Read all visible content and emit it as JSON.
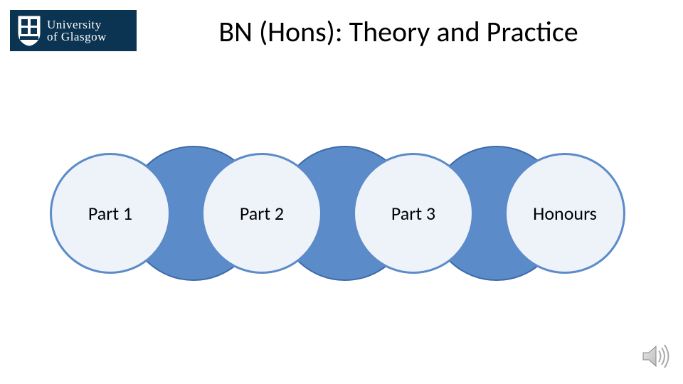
{
  "logo": {
    "bg_color": "#0b3352",
    "text_color": "#ffffff",
    "line1_prefix": "University",
    "line1_of": "of ",
    "line2": "Glasgow"
  },
  "title": {
    "text": "BN (Hons): Theory and Practice",
    "fontsize": 40,
    "color": "#000000"
  },
  "chain": {
    "type": "flowchart",
    "circle_fill": "#eef2f9",
    "circle_border": "#5b8bc8",
    "circle_border_width": 3,
    "connector_fill": "#5b8bc8",
    "connector_border": "#3d6aa8",
    "label_fontsize": 26,
    "label_color": "#000000",
    "circle_diameter": 170,
    "connector_diameter": 190,
    "overlap": 40,
    "steps": [
      {
        "label": "Part 1"
      },
      {
        "label": "Part 2"
      },
      {
        "label": "Part 3"
      },
      {
        "label": "Honours"
      }
    ]
  },
  "speaker_icon": {
    "fill": "#c9c9c9",
    "stroke": "#888888"
  }
}
